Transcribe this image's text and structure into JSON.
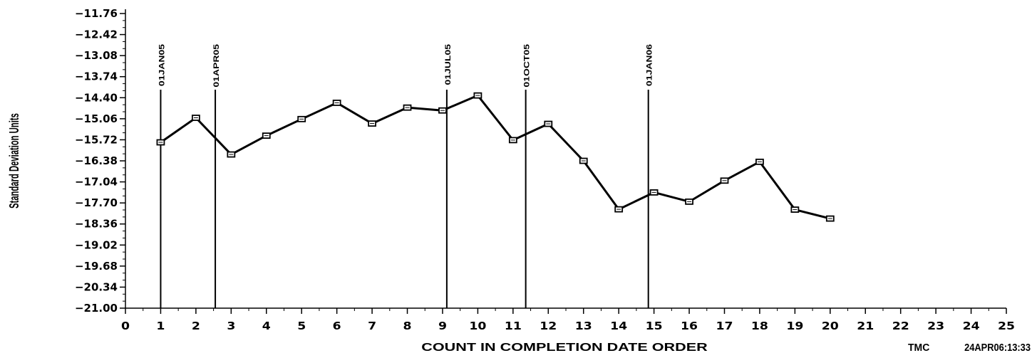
{
  "chart_data": {
    "type": "line",
    "xlabel": "COUNT IN COMPLETION DATE ORDER",
    "ylabel": "Standard Deviation Units",
    "xlim": [
      0,
      25
    ],
    "x_ticks": [
      "0",
      "1",
      "2",
      "3",
      "4",
      "5",
      "6",
      "7",
      "8",
      "9",
      "10",
      "11",
      "12",
      "13",
      "14",
      "15",
      "16",
      "17",
      "18",
      "19",
      "20",
      "21",
      "22",
      "23",
      "24",
      "25"
    ],
    "ylim": [
      -21.0,
      -11.76
    ],
    "y_ticks": [
      "-11.76",
      "-12.42",
      "-13.08",
      "-13.74",
      "-14.40",
      "-15.06",
      "-15.72",
      "-16.38",
      "-17.04",
      "-17.70",
      "-18.36",
      "-19.02",
      "-19.68",
      "-20.34",
      "-21.00"
    ],
    "y_tick_values": [
      -11.76,
      -12.42,
      -13.08,
      -13.74,
      -14.4,
      -15.06,
      -15.72,
      -16.38,
      -17.04,
      -17.7,
      -18.36,
      -19.02,
      -19.68,
      -20.34,
      -21.0
    ],
    "grid": false,
    "series": [
      {
        "x": [
          1,
          2,
          3,
          4,
          5,
          6,
          7,
          8,
          9,
          10,
          11,
          12,
          13,
          14,
          15,
          16,
          17,
          18,
          19,
          20
        ],
        "values": [
          -15.8,
          -15.03,
          -16.18,
          -15.59,
          -15.07,
          -14.56,
          -15.21,
          -14.71,
          -14.8,
          -14.33,
          -15.73,
          -15.22,
          -16.38,
          -17.9,
          -17.37,
          -17.66,
          -17.0,
          -16.41,
          -17.91,
          -18.19
        ],
        "marker": "square",
        "color": "#000000"
      }
    ],
    "reference_lines": [
      {
        "label": "01JAN05",
        "x": 1.0
      },
      {
        "label": "01APR05",
        "x": 2.55
      },
      {
        "label": "01JUL05",
        "x": 9.12
      },
      {
        "label": "01OCT05",
        "x": 11.36
      },
      {
        "label": "01JAN06",
        "x": 14.84
      }
    ]
  },
  "footer": {
    "left": "TMC",
    "right": "24APR06:13:33"
  }
}
